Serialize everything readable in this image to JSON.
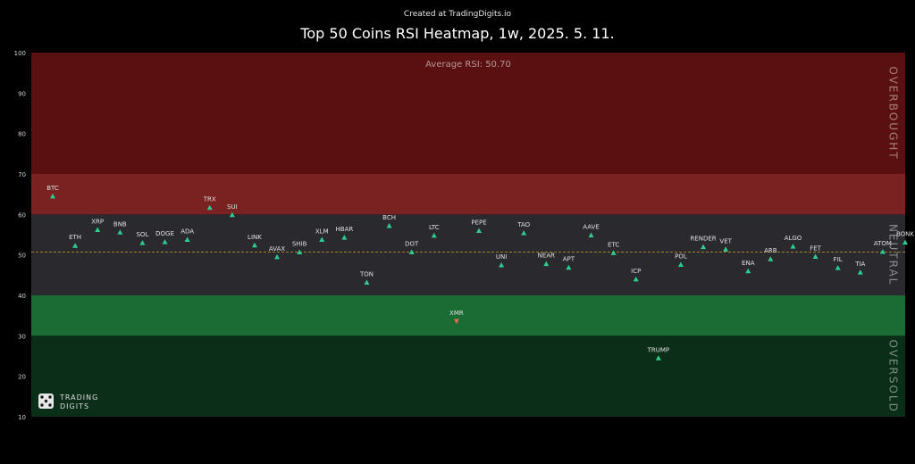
{
  "header": {
    "credit": "Created at TradingDigits.io",
    "title": "Top 50 Coins RSI Heatmap, 1w, 2025. 5. 11."
  },
  "brand": {
    "line1": "TRADING",
    "line2": "DIGITS",
    "logo_icon": "dice-logo-icon"
  },
  "colors": {
    "background": "#000000",
    "overbought_band": "#5a1010",
    "strong_band": "#7a2222",
    "neutral_band": "#2a2a2e",
    "weak_band": "#1a6b34",
    "oversold_band": "#0a2e17",
    "up_marker": "#2ecc8f",
    "down_marker": "#e07050",
    "average_line": "#c9a227"
  },
  "chart_data": {
    "type": "scatter",
    "title": "Top 50 Coins RSI Heatmap, 1w, 2025. 5. 11.",
    "ylim": [
      10,
      100
    ],
    "yticks": [
      10,
      20,
      30,
      40,
      50,
      60,
      70,
      80,
      90,
      100
    ],
    "average_rsi": 50.7,
    "average_label": "Average RSI: 50.70",
    "zones": [
      {
        "label": "OVERBOUGHT",
        "from": 70,
        "to": 100
      },
      {
        "label": "NEUTRAL",
        "from": 40,
        "to": 60
      },
      {
        "label": "OVERSOLD",
        "from": 10,
        "to": 30
      }
    ],
    "bands": [
      {
        "from": 70,
        "to": 100,
        "kind": "overbought"
      },
      {
        "from": 60,
        "to": 70,
        "kind": "strong"
      },
      {
        "from": 40,
        "to": 60,
        "kind": "neutral"
      },
      {
        "from": 30,
        "to": 40,
        "kind": "weak"
      },
      {
        "from": 10,
        "to": 30,
        "kind": "oversold"
      }
    ],
    "points": [
      {
        "coin": "BTC",
        "rsi": 64.5,
        "dir": "up"
      },
      {
        "coin": "ETH",
        "rsi": 52.3,
        "dir": "up"
      },
      {
        "coin": "XRP",
        "rsi": 56.2,
        "dir": "up"
      },
      {
        "coin": "BNB",
        "rsi": 55.6,
        "dir": "up"
      },
      {
        "coin": "SOL",
        "rsi": 53.0,
        "dir": "up"
      },
      {
        "coin": "DOGE",
        "rsi": 53.2,
        "dir": "up"
      },
      {
        "coin": "ADA",
        "rsi": 53.8,
        "dir": "up"
      },
      {
        "coin": "TRX",
        "rsi": 61.7,
        "dir": "up"
      },
      {
        "coin": "SUI",
        "rsi": 59.9,
        "dir": "up"
      },
      {
        "coin": "LINK",
        "rsi": 52.4,
        "dir": "up"
      },
      {
        "coin": "AVAX",
        "rsi": 49.5,
        "dir": "up"
      },
      {
        "coin": "SHIB",
        "rsi": 50.7,
        "dir": "up"
      },
      {
        "coin": "XLM",
        "rsi": 53.8,
        "dir": "up"
      },
      {
        "coin": "HBAR",
        "rsi": 54.3,
        "dir": "up"
      },
      {
        "coin": "TON",
        "rsi": 43.2,
        "dir": "up"
      },
      {
        "coin": "BCH",
        "rsi": 57.2,
        "dir": "up"
      },
      {
        "coin": "DOT",
        "rsi": 50.7,
        "dir": "up"
      },
      {
        "coin": "LTC",
        "rsi": 54.8,
        "dir": "up"
      },
      {
        "coin": "XMR",
        "rsi": 33.6,
        "dir": "down"
      },
      {
        "coin": "PEPE",
        "rsi": 56.0,
        "dir": "up"
      },
      {
        "coin": "UNI",
        "rsi": 47.5,
        "dir": "up"
      },
      {
        "coin": "TAO",
        "rsi": 55.4,
        "dir": "up"
      },
      {
        "coin": "NEAR",
        "rsi": 47.8,
        "dir": "up"
      },
      {
        "coin": "APT",
        "rsi": 46.9,
        "dir": "up"
      },
      {
        "coin": "AAVE",
        "rsi": 54.9,
        "dir": "up"
      },
      {
        "coin": "ETC",
        "rsi": 50.5,
        "dir": "up"
      },
      {
        "coin": "ICP",
        "rsi": 44.0,
        "dir": "up"
      },
      {
        "coin": "TRUMP",
        "rsi": 24.5,
        "dir": "up"
      },
      {
        "coin": "POL",
        "rsi": 47.6,
        "dir": "up"
      },
      {
        "coin": "RENDER",
        "rsi": 52.0,
        "dir": "up"
      },
      {
        "coin": "VET",
        "rsi": 51.4,
        "dir": "up"
      },
      {
        "coin": "ENA",
        "rsi": 46.0,
        "dir": "up"
      },
      {
        "coin": "ARB",
        "rsi": 49.0,
        "dir": "up"
      },
      {
        "coin": "ALGO",
        "rsi": 52.1,
        "dir": "up"
      },
      {
        "coin": "FET",
        "rsi": 49.6,
        "dir": "up"
      },
      {
        "coin": "FIL",
        "rsi": 46.8,
        "dir": "up"
      },
      {
        "coin": "TIA",
        "rsi": 45.7,
        "dir": "up"
      },
      {
        "coin": "ATOM",
        "rsi": 50.8,
        "dir": "up"
      },
      {
        "coin": "BONK",
        "rsi": 53.1,
        "dir": "up"
      }
    ]
  }
}
